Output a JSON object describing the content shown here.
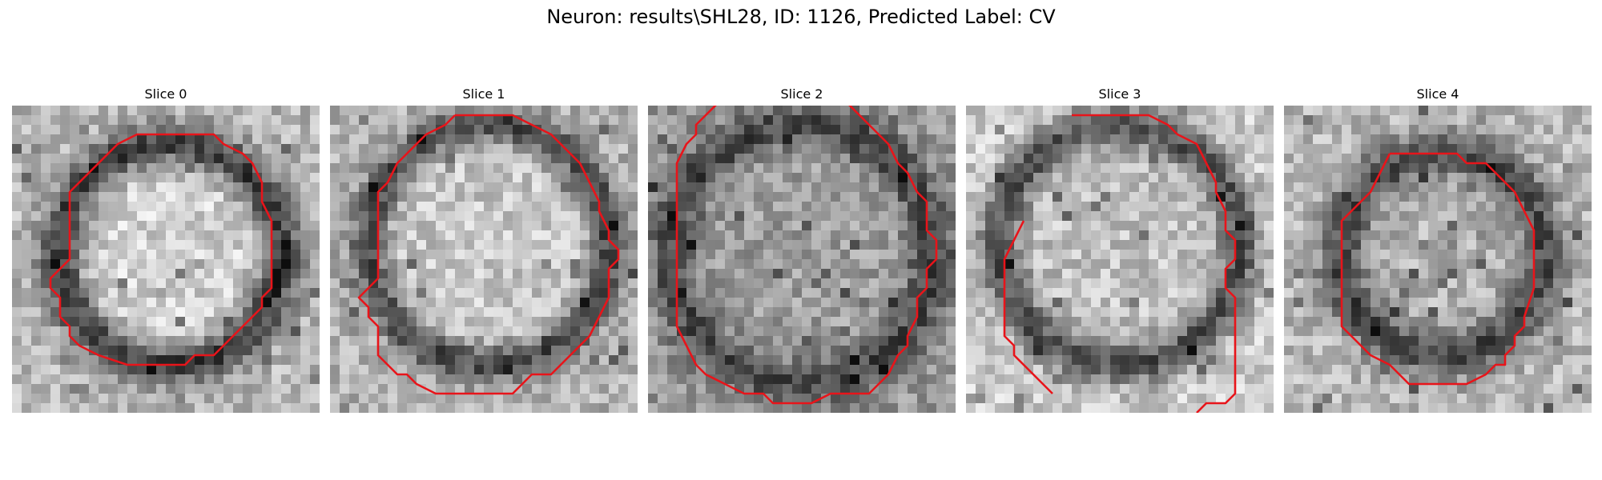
{
  "figure": {
    "suptitle": "Neuron: results\\SHL28, ID: 1126, Predicted Label: CV"
  },
  "slices": [
    {
      "title": "Slice 0"
    },
    {
      "title": "Slice 1"
    },
    {
      "title": "Slice 2"
    },
    {
      "title": "Slice 3"
    },
    {
      "title": "Slice 4"
    }
  ],
  "colors": {
    "contour": "#e8141a",
    "background": "#ffffff"
  }
}
